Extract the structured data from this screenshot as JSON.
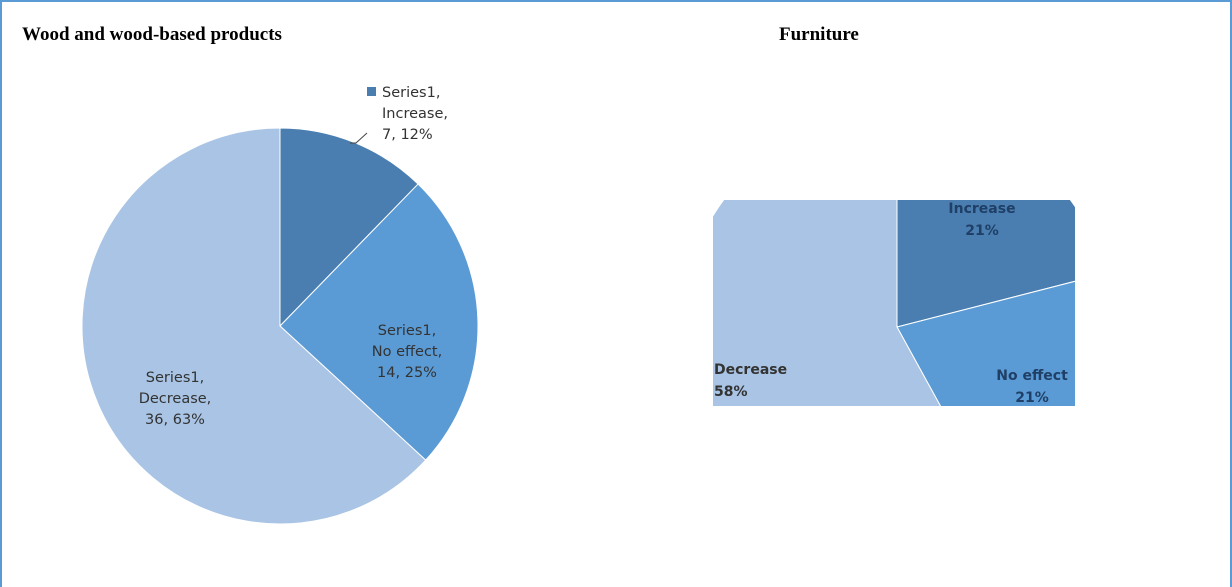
{
  "titles": {
    "left": "Wood and wood-based products",
    "right": "Furniture"
  },
  "colors": {
    "increase": "#4a7eb1",
    "no_effect": "#5b9bd5",
    "decrease": "#a9c4e4",
    "legend_marker": "#4a7eb1"
  },
  "chart_data": [
    {
      "type": "pie",
      "title": "Wood and wood-based products",
      "series": [
        {
          "name": "Series1",
          "categories": [
            "Increase",
            "No effect",
            "Decrease"
          ],
          "values": [
            7,
            14,
            36
          ],
          "percents": [
            12,
            25,
            63
          ]
        }
      ],
      "legend": {
        "placement": "top-right",
        "entries": [
          "Series1, Increase, 7, 12%"
        ]
      },
      "data_labels": [
        [
          "Series1,",
          "Increase,",
          "7, 12%"
        ],
        [
          "Series1,",
          "No effect,",
          "14, 25%"
        ],
        [
          "Series1,",
          "Decrease,",
          "36, 63%"
        ]
      ]
    },
    {
      "type": "pie",
      "title": "Furniture",
      "categories": [
        "Increase",
        "No effect",
        "Decrease"
      ],
      "percents": [
        21,
        21,
        58
      ],
      "cropped": true,
      "data_labels": [
        [
          "Increase",
          "21%"
        ],
        [
          "No effect",
          "21%"
        ],
        [
          "Decrease",
          "58%"
        ]
      ]
    }
  ]
}
